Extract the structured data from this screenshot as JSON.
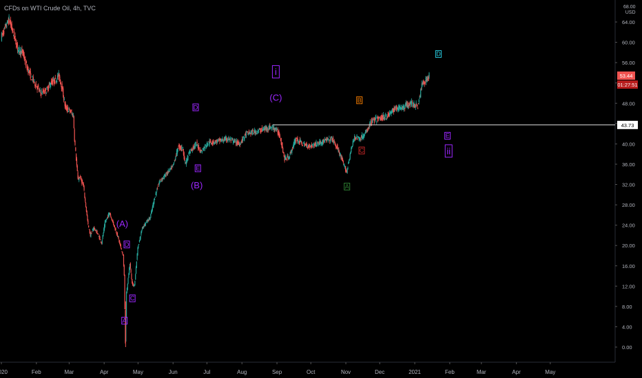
{
  "header": {
    "title": "CFDs on WTI Crude Oil, 4h, TVC",
    "currency": "USD",
    "scale_top_tick": "68.00"
  },
  "price_badges": {
    "last_price": "53.44",
    "countdown": "01:27:51",
    "line_price": "43.73"
  },
  "colors": {
    "background": "#000000",
    "up_candle": "#26a69a",
    "down_candle": "#ef5350",
    "axis_text": "#b2b5be",
    "price_badge": "#ef5350",
    "wave_purple": "#9c27ff",
    "wave_orange": "#f57c00",
    "wave_red": "#c62828",
    "wave_green": "#2e7d32",
    "wave_teal": "#26c6da"
  },
  "chart_data": {
    "type": "candlestick",
    "title": "CFDs on WTI Crude Oil, 4h, TVC",
    "y_axis": {
      "unit": "USD",
      "ticks": [
        "64.00",
        "60.00",
        "56.00",
        "52.00",
        "48.00",
        "44.00",
        "40.00",
        "36.00",
        "32.00",
        "28.00",
        "24.00",
        "20.00",
        "16.00",
        "12.00",
        "8.00",
        "4.00",
        "0.00"
      ],
      "ylim": [
        -2,
        68
      ]
    },
    "x_axis": {
      "ticks": [
        "2020",
        "Feb",
        "Mar",
        "Apr",
        "May",
        "Jun",
        "Jul",
        "Aug",
        "Sep",
        "Oct",
        "Nov",
        "Dec",
        "2021",
        "Feb",
        "Mar",
        "Apr",
        "May"
      ],
      "range": [
        "2020-01-01",
        "2021-05-20"
      ]
    },
    "horizontal_line": {
      "value": 43.73
    },
    "last_price": 53.44,
    "price_path": [
      [
        "2020-01-01",
        61.0
      ],
      [
        "2020-01-05",
        63.0
      ],
      [
        "2020-01-08",
        64.5
      ],
      [
        "2020-01-12",
        61.5
      ],
      [
        "2020-01-16",
        58.5
      ],
      [
        "2020-01-20",
        58.0
      ],
      [
        "2020-01-24",
        55.0
      ],
      [
        "2020-01-28",
        53.0
      ],
      [
        "2020-02-01",
        51.5
      ],
      [
        "2020-02-05",
        50.0
      ],
      [
        "2020-02-10",
        50.5
      ],
      [
        "2020-02-14",
        52.0
      ],
      [
        "2020-02-18",
        52.5
      ],
      [
        "2020-02-21",
        53.5
      ],
      [
        "2020-02-24",
        51.0
      ],
      [
        "2020-02-27",
        47.0
      ],
      [
        "2020-03-02",
        46.5
      ],
      [
        "2020-03-05",
        45.5
      ],
      [
        "2020-03-06",
        41.0
      ],
      [
        "2020-03-09",
        33.0
      ],
      [
        "2020-03-11",
        33.5
      ],
      [
        "2020-03-14",
        31.5
      ],
      [
        "2020-03-18",
        24.0
      ],
      [
        "2020-03-20",
        22.0
      ],
      [
        "2020-03-23",
        23.5
      ],
      [
        "2020-03-26",
        22.5
      ],
      [
        "2020-03-30",
        20.5
      ],
      [
        "2020-04-02",
        24.5
      ],
      [
        "2020-04-06",
        26.5
      ],
      [
        "2020-04-09",
        24.5
      ],
      [
        "2020-04-13",
        22.0
      ],
      [
        "2020-04-16",
        19.5
      ],
      [
        "2020-04-18",
        18.0
      ],
      [
        "2020-04-19",
        14.0
      ],
      [
        "2020-04-20",
        1.0
      ],
      [
        "2020-04-21",
        10.5
      ],
      [
        "2020-04-24",
        16.5
      ],
      [
        "2020-04-26",
        12.5
      ],
      [
        "2020-04-28",
        12.0
      ],
      [
        "2020-05-01",
        19.5
      ],
      [
        "2020-05-05",
        23.5
      ],
      [
        "2020-05-08",
        24.5
      ],
      [
        "2020-05-12",
        25.5
      ],
      [
        "2020-05-16",
        29.5
      ],
      [
        "2020-05-20",
        32.5
      ],
      [
        "2020-05-26",
        34.0
      ],
      [
        "2020-06-01",
        35.5
      ],
      [
        "2020-06-06",
        39.5
      ],
      [
        "2020-06-10",
        39.0
      ],
      [
        "2020-06-12",
        36.0
      ],
      [
        "2020-06-16",
        38.5
      ],
      [
        "2020-06-22",
        40.0
      ],
      [
        "2020-06-26",
        38.5
      ],
      [
        "2020-07-02",
        40.2
      ],
      [
        "2020-07-10",
        40.5
      ],
      [
        "2020-07-20",
        41.0
      ],
      [
        "2020-07-30",
        40.0
      ],
      [
        "2020-08-05",
        42.0
      ],
      [
        "2020-08-15",
        42.5
      ],
      [
        "2020-08-26",
        43.3
      ],
      [
        "2020-08-31",
        43.0
      ],
      [
        "2020-09-04",
        41.5
      ],
      [
        "2020-09-08",
        37.0
      ],
      [
        "2020-09-12",
        37.5
      ],
      [
        "2020-09-18",
        41.0
      ],
      [
        "2020-09-24",
        40.0
      ],
      [
        "2020-09-30",
        39.5
      ],
      [
        "2020-10-06",
        40.0
      ],
      [
        "2020-10-12",
        40.5
      ],
      [
        "2020-10-20",
        41.0
      ],
      [
        "2020-10-26",
        38.5
      ],
      [
        "2020-10-30",
        36.0
      ],
      [
        "2020-11-02",
        34.5
      ],
      [
        "2020-11-05",
        38.0
      ],
      [
        "2020-11-09",
        41.5
      ],
      [
        "2020-11-13",
        41.0
      ],
      [
        "2020-11-18",
        41.8
      ],
      [
        "2020-11-24",
        44.5
      ],
      [
        "2020-12-01",
        45.0
      ],
      [
        "2020-12-08",
        45.5
      ],
      [
        "2020-12-15",
        47.0
      ],
      [
        "2020-12-22",
        47.2
      ],
      [
        "2020-12-28",
        48.0
      ],
      [
        "2021-01-04",
        47.5
      ],
      [
        "2021-01-08",
        52.0
      ],
      [
        "2021-01-11",
        52.5
      ],
      [
        "2021-01-14",
        53.44
      ]
    ]
  },
  "wave_labels": [
    {
      "text": "(A)",
      "date": "2020-04-17",
      "value": 24.3,
      "color": "wave_purple",
      "style": "plain",
      "size": 13
    },
    {
      "text": "D",
      "date": "2020-04-21",
      "value": 20.2,
      "color": "wave_purple",
      "style": "box",
      "size": 9
    },
    {
      "text": "C",
      "date": "2020-04-26",
      "value": 9.6,
      "color": "wave_purple",
      "style": "box",
      "size": 9
    },
    {
      "text": "A",
      "date": "2020-04-19",
      "value": 5.2,
      "color": "wave_purple",
      "style": "box",
      "size": 9
    },
    {
      "text": "D",
      "date": "2020-06-21",
      "value": 47.2,
      "color": "wave_purple",
      "style": "box",
      "size": 9
    },
    {
      "text": "E",
      "date": "2020-06-23",
      "value": 35.2,
      "color": "wave_purple",
      "style": "box",
      "size": 9
    },
    {
      "text": "(B)",
      "date": "2020-06-22",
      "value": 31.9,
      "color": "wave_purple",
      "style": "plain",
      "size": 13
    },
    {
      "text": "i",
      "date": "2020-08-31",
      "value": 54.2,
      "color": "wave_purple",
      "style": "box",
      "size": 13
    },
    {
      "text": "(C)",
      "date": "2020-08-31",
      "value": 49.1,
      "color": "wave_purple",
      "style": "plain",
      "size": 13
    },
    {
      "text": "B",
      "date": "2020-11-13",
      "value": 48.6,
      "color": "wave_orange",
      "style": "box",
      "size": 9
    },
    {
      "text": "C",
      "date": "2020-11-15",
      "value": 38.7,
      "color": "wave_red",
      "style": "box",
      "size": 9
    },
    {
      "text": "A",
      "date": "2020-11-02",
      "value": 31.6,
      "color": "wave_green",
      "style": "box",
      "size": 9
    },
    {
      "text": "D",
      "date": "2021-01-22",
      "value": 57.7,
      "color": "wave_teal",
      "style": "box",
      "size": 9
    },
    {
      "text": "E",
      "date": "2021-01-30",
      "value": 41.6,
      "color": "wave_purple",
      "style": "box",
      "size": 9
    },
    {
      "text": "ii",
      "date": "2021-01-31",
      "value": 38.6,
      "color": "wave_purple",
      "style": "box",
      "size": 13
    }
  ]
}
